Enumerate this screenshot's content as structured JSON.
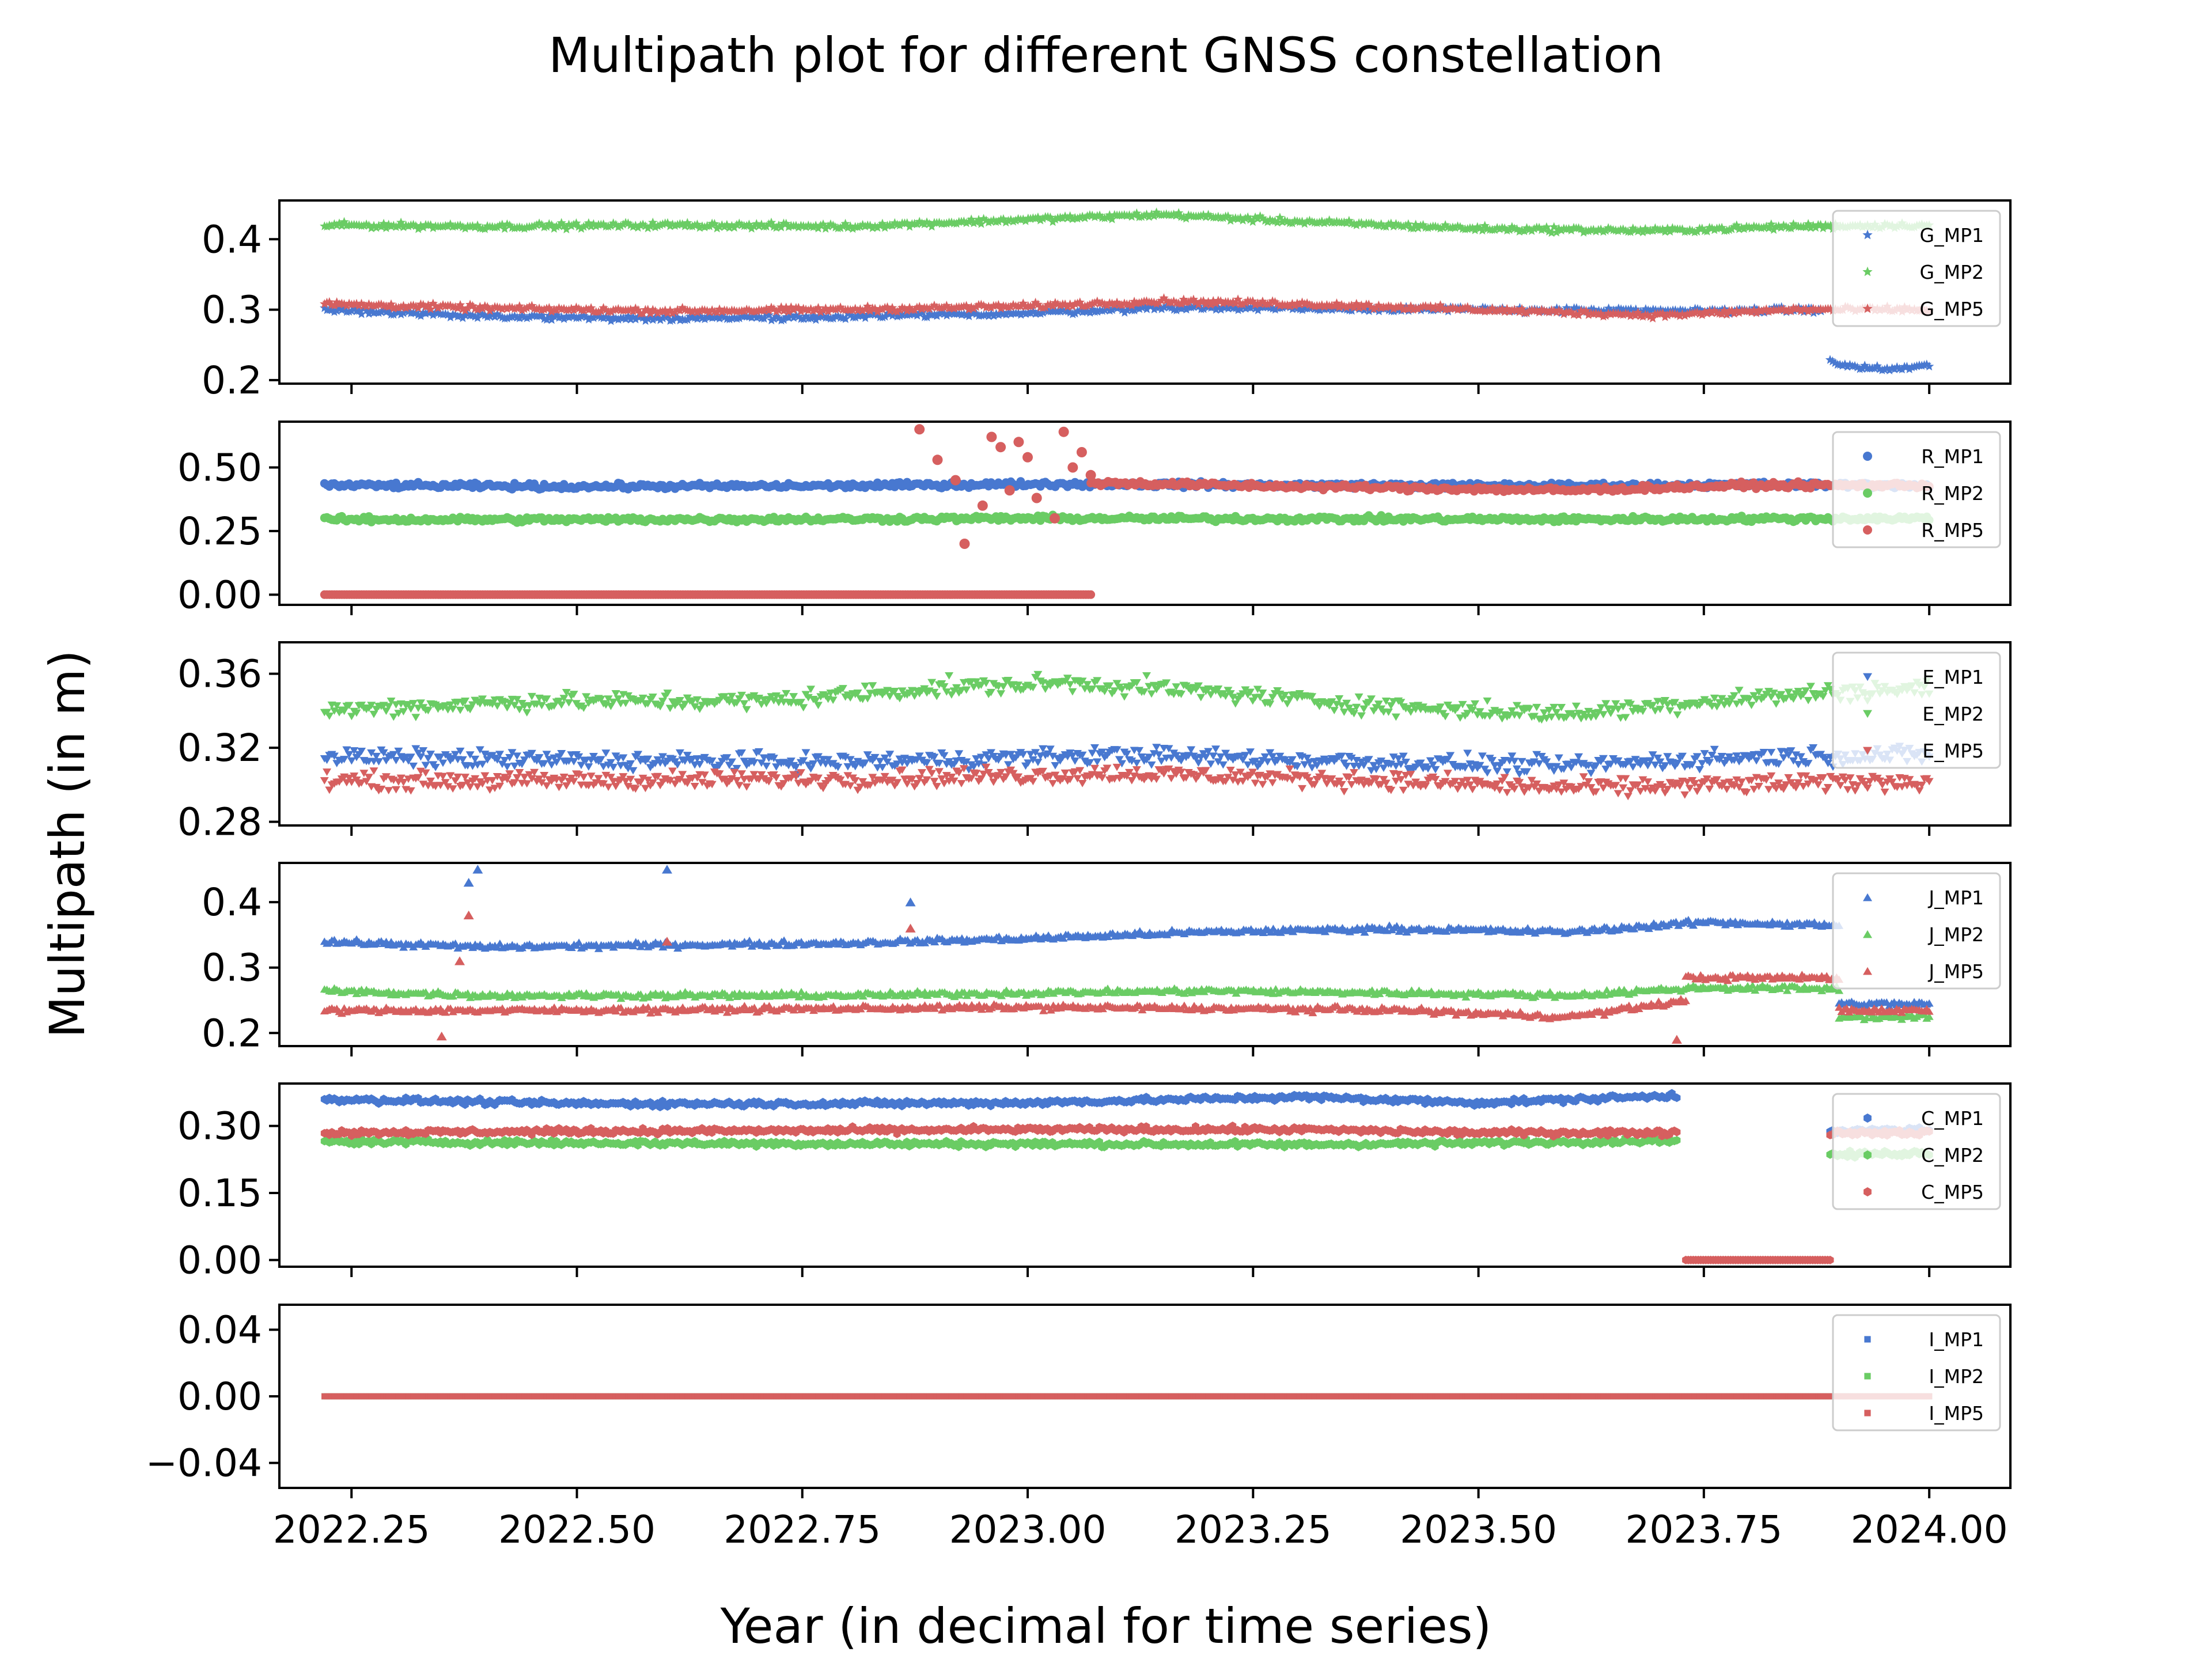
{
  "title": "Multipath plot for different GNSS constellation",
  "xlabel": "Year (in decimal for time series)",
  "ylabel": "Multipath (in m)",
  "colors": {
    "MP1": "#4878d0",
    "MP2": "#6acc64",
    "MP5": "#d65f5f"
  },
  "chart_data": {
    "type": "scatter",
    "xlim": [
      2022.17,
      2024.09
    ],
    "xticks": [
      2022.25,
      2022.5,
      2022.75,
      2023.0,
      2023.25,
      2023.5,
      2023.75,
      2024.0
    ],
    "xtick_labels": [
      "2022.25",
      "2022.50",
      "2022.75",
      "2023.00",
      "2023.25",
      "2023.50",
      "2023.75",
      "2024.00"
    ],
    "legend_position": "upper right",
    "panels": [
      {
        "constellation": "G",
        "marker": "star",
        "ylim": [
          0.195,
          0.455
        ],
        "yticks": [
          0.2,
          0.3,
          0.4
        ],
        "ytick_labels": [
          "0.2",
          "0.3",
          "0.4"
        ],
        "series": [
          {
            "name": "G_MP1",
            "color_key": "MP1",
            "segments": [
              {
                "x": [
                  2022.22,
                  2022.4,
                  2022.6,
                  2022.8,
                  2023.0,
                  2023.15,
                  2023.3,
                  2023.5,
                  2023.7,
                  2023.88
                ],
                "y": [
                  0.3,
                  0.29,
                  0.288,
                  0.29,
                  0.295,
                  0.303,
                  0.302,
                  0.3,
                  0.298,
                  0.3
                ]
              },
              {
                "x": [
                  2023.89,
                  2023.91,
                  2023.95,
                  2024.0
                ],
                "y": [
                  0.225,
                  0.22,
                  0.215,
                  0.22
                ]
              }
            ]
          },
          {
            "name": "G_MP2",
            "color_key": "MP2",
            "segments": [
              {
                "x": [
                  2022.22,
                  2022.4,
                  2022.6,
                  2022.8,
                  2023.0,
                  2023.15,
                  2023.3,
                  2023.5,
                  2023.7,
                  2023.85,
                  2024.0
                ],
                "y": [
                  0.42,
                  0.418,
                  0.42,
                  0.418,
                  0.428,
                  0.435,
                  0.425,
                  0.415,
                  0.412,
                  0.418,
                  0.42
                ]
              }
            ]
          },
          {
            "name": "G_MP5",
            "color_key": "MP5",
            "segments": [
              {
                "x": [
                  2022.22,
                  2022.4,
                  2022.6,
                  2022.8,
                  2023.0,
                  2023.15,
                  2023.3,
                  2023.5,
                  2023.7,
                  2023.85,
                  2024.0
                ],
                "y": [
                  0.308,
                  0.302,
                  0.298,
                  0.3,
                  0.305,
                  0.312,
                  0.308,
                  0.3,
                  0.292,
                  0.3,
                  0.3
                ]
              }
            ]
          }
        ]
      },
      {
        "constellation": "R",
        "marker": "circle",
        "ylim": [
          -0.04,
          0.68
        ],
        "yticks": [
          0.0,
          0.25,
          0.5
        ],
        "ytick_labels": [
          "0.00",
          "0.25",
          "0.50"
        ],
        "series": [
          {
            "name": "R_MP1",
            "color_key": "MP1",
            "segments": [
              {
                "x": [
                  2022.22,
                  2022.5,
                  2022.8,
                  2023.0,
                  2023.3,
                  2023.6,
                  2023.8,
                  2024.0
                ],
                "y": [
                  0.43,
                  0.425,
                  0.428,
                  0.435,
                  0.43,
                  0.428,
                  0.432,
                  0.43
                ]
              }
            ]
          },
          {
            "name": "R_MP2",
            "color_key": "MP2",
            "segments": [
              {
                "x": [
                  2022.22,
                  2022.5,
                  2022.8,
                  2023.0,
                  2023.3,
                  2023.6,
                  2023.8,
                  2024.0
                ],
                "y": [
                  0.295,
                  0.295,
                  0.297,
                  0.3,
                  0.298,
                  0.296,
                  0.298,
                  0.3
                ]
              }
            ]
          },
          {
            "name": "R_MP5",
            "color_key": "MP5",
            "segments": [
              {
                "x": [
                  2022.22,
                  2022.5,
                  2022.8,
                  2023.07
                ],
                "y": [
                  0.0,
                  0.0,
                  0.0,
                  0.0
                ]
              },
              {
                "x": [
                  2023.07,
                  2023.3,
                  2023.6,
                  2023.8,
                  2024.0
                ],
                "y": [
                  0.44,
                  0.425,
                  0.41,
                  0.43,
                  0.43
                ]
              }
            ],
            "outliers": {
              "x": [
                2022.88,
                2022.9,
                2022.92,
                2022.93,
                2022.95,
                2022.96,
                2022.97,
                2022.98,
                2022.99,
                2023.0,
                2023.01,
                2023.03,
                2023.04,
                2023.05,
                2023.06,
                2023.07
              ],
              "y": [
                0.65,
                0.53,
                0.45,
                0.2,
                0.35,
                0.62,
                0.58,
                0.41,
                0.6,
                0.54,
                0.38,
                0.3,
                0.64,
                0.5,
                0.56,
                0.47
              ]
            }
          }
        ]
      },
      {
        "constellation": "E",
        "marker": "triangle-down",
        "ylim": [
          0.278,
          0.377
        ],
        "yticks": [
          0.28,
          0.32,
          0.36
        ],
        "ytick_labels": [
          "0.28",
          "0.32",
          "0.36"
        ],
        "series": [
          {
            "name": "E_MP1",
            "color_key": "MP1",
            "segments": [
              {
                "x": [
                  2022.22,
                  2022.5,
                  2022.8,
                  2023.1,
                  2023.4,
                  2023.6,
                  2023.8,
                  2024.0
                ],
                "y": [
                  0.315,
                  0.313,
                  0.312,
                  0.316,
                  0.312,
                  0.31,
                  0.315,
                  0.316
                ]
              }
            ]
          },
          {
            "name": "E_MP2",
            "color_key": "MP2",
            "segments": [
              {
                "x": [
                  2022.22,
                  2022.45,
                  2022.7,
                  2022.9,
                  2023.05,
                  2023.2,
                  2023.4,
                  2023.6,
                  2023.75,
                  2023.9,
                  2024.0
                ],
                "y": [
                  0.34,
                  0.345,
                  0.345,
                  0.352,
                  0.355,
                  0.35,
                  0.342,
                  0.338,
                  0.345,
                  0.35,
                  0.352
                ]
              }
            ]
          },
          {
            "name": "E_MP5",
            "color_key": "MP5",
            "segments": [
              {
                "x": [
                  2022.22,
                  2022.5,
                  2022.8,
                  2023.1,
                  2023.4,
                  2023.6,
                  2023.8,
                  2024.0
                ],
                "y": [
                  0.302,
                  0.302,
                  0.303,
                  0.306,
                  0.302,
                  0.298,
                  0.3,
                  0.302
                ]
              }
            ]
          }
        ]
      },
      {
        "constellation": "J",
        "marker": "triangle-up",
        "ylim": [
          0.18,
          0.46
        ],
        "yticks": [
          0.2,
          0.3,
          0.4
        ],
        "ytick_labels": [
          "0.2",
          "0.3",
          "0.4"
        ],
        "series": [
          {
            "name": "J_MP1",
            "color_key": "MP1",
            "segments": [
              {
                "x": [
                  2022.22,
                  2022.4,
                  2022.6,
                  2022.8,
                  2023.0,
                  2023.2,
                  2023.4,
                  2023.6,
                  2023.75,
                  2023.9
                ],
                "y": [
                  0.34,
                  0.332,
                  0.335,
                  0.338,
                  0.345,
                  0.355,
                  0.36,
                  0.355,
                  0.37,
                  0.365
                ]
              },
              {
                "x": [
                  2023.9,
                  2024.0
                ],
                "y": [
                  0.245,
                  0.245
                ]
              }
            ],
            "outliers": {
              "x": [
                2022.38,
                2022.39,
                2022.6,
                2022.87
              ],
              "y": [
                0.43,
                0.45,
                0.45,
                0.4
              ]
            }
          },
          {
            "name": "J_MP2",
            "color_key": "MP2",
            "segments": [
              {
                "x": [
                  2022.22,
                  2022.4,
                  2022.6,
                  2022.8,
                  2023.0,
                  2023.2,
                  2023.4,
                  2023.6,
                  2023.75,
                  2023.9
                ],
                "y": [
                  0.265,
                  0.258,
                  0.258,
                  0.258,
                  0.262,
                  0.265,
                  0.262,
                  0.258,
                  0.27,
                  0.268
                ]
              },
              {
                "x": [
                  2023.9,
                  2024.0
                ],
                "y": [
                  0.225,
                  0.225
                ]
              }
            ]
          },
          {
            "name": "J_MP5",
            "color_key": "MP5",
            "segments": [
              {
                "x": [
                  2022.22,
                  2022.4,
                  2022.6,
                  2022.8,
                  2023.0,
                  2023.2,
                  2023.4,
                  2023.6,
                  2023.73
                ],
                "y": [
                  0.235,
                  0.235,
                  0.236,
                  0.238,
                  0.24,
                  0.238,
                  0.236,
                  0.225,
                  0.25
                ]
              },
              {
                "x": [
                  2023.73,
                  2023.9
                ],
                "y": [
                  0.285,
                  0.285
                ]
              },
              {
                "x": [
                  2023.9,
                  2024.0
                ],
                "y": [
                  0.235,
                  0.235
                ]
              }
            ],
            "outliers": {
              "x": [
                2022.35,
                2022.37,
                2022.38,
                2022.6,
                2022.87,
                2023.72
              ],
              "y": [
                0.195,
                0.31,
                0.38,
                0.34,
                0.36,
                0.19
              ]
            }
          }
        ]
      },
      {
        "constellation": "C",
        "marker": "hexagon",
        "ylim": [
          -0.015,
          0.395
        ],
        "yticks": [
          0.0,
          0.15,
          0.3
        ],
        "ytick_labels": [
          "0.00",
          "0.15",
          "0.30"
        ],
        "series": [
          {
            "name": "C_MP1",
            "color_key": "MP1",
            "segments": [
              {
                "x": [
                  2022.22,
                  2022.5,
                  2022.8,
                  2023.0,
                  2023.3,
                  2023.5,
                  2023.72
                ],
                "y": [
                  0.36,
                  0.35,
                  0.35,
                  0.352,
                  0.365,
                  0.352,
                  0.368
                ]
              },
              {
                "x": [
                  2023.89,
                  2024.0
                ],
                "y": [
                  0.29,
                  0.29
                ]
              }
            ]
          },
          {
            "name": "C_MP2",
            "color_key": "MP2",
            "segments": [
              {
                "x": [
                  2022.22,
                  2022.5,
                  2022.8,
                  2023.0,
                  2023.3,
                  2023.5,
                  2023.72
                ],
                "y": [
                  0.265,
                  0.262,
                  0.26,
                  0.26,
                  0.258,
                  0.262,
                  0.268
                ]
              },
              {
                "x": [
                  2023.89,
                  2024.0
                ],
                "y": [
                  0.235,
                  0.24
                ]
              }
            ]
          },
          {
            "name": "C_MP5",
            "color_key": "MP5",
            "segments": [
              {
                "x": [
                  2022.22,
                  2022.5,
                  2022.8,
                  2023.0,
                  2023.3,
                  2023.5,
                  2023.72
                ],
                "y": [
                  0.285,
                  0.288,
                  0.29,
                  0.292,
                  0.292,
                  0.285,
                  0.285
                ]
              },
              {
                "x": [
                  2023.73,
                  2023.89
                ],
                "y": [
                  0.0,
                  0.0
                ]
              },
              {
                "x": [
                  2023.89,
                  2024.0
                ],
                "y": [
                  0.285,
                  0.285
                ]
              }
            ]
          }
        ]
      },
      {
        "constellation": "I",
        "marker": "square",
        "ylim": [
          -0.055,
          0.055
        ],
        "yticks": [
          -0.04,
          0.0,
          0.04
        ],
        "ytick_labels": [
          "−0.04",
          "0.00",
          "0.04"
        ],
        "series": [
          {
            "name": "I_MP1",
            "color_key": "MP1",
            "segments": [
              {
                "x": [
                  2022.22,
                  2024.0
                ],
                "y": [
                  0.0,
                  0.0
                ]
              }
            ]
          },
          {
            "name": "I_MP2",
            "color_key": "MP2",
            "segments": [
              {
                "x": [
                  2022.22,
                  2024.0
                ],
                "y": [
                  0.0,
                  0.0
                ]
              }
            ]
          },
          {
            "name": "I_MP5",
            "color_key": "MP5",
            "segments": [
              {
                "x": [
                  2022.22,
                  2024.0
                ],
                "y": [
                  0.0,
                  0.0
                ]
              }
            ]
          }
        ]
      }
    ]
  }
}
